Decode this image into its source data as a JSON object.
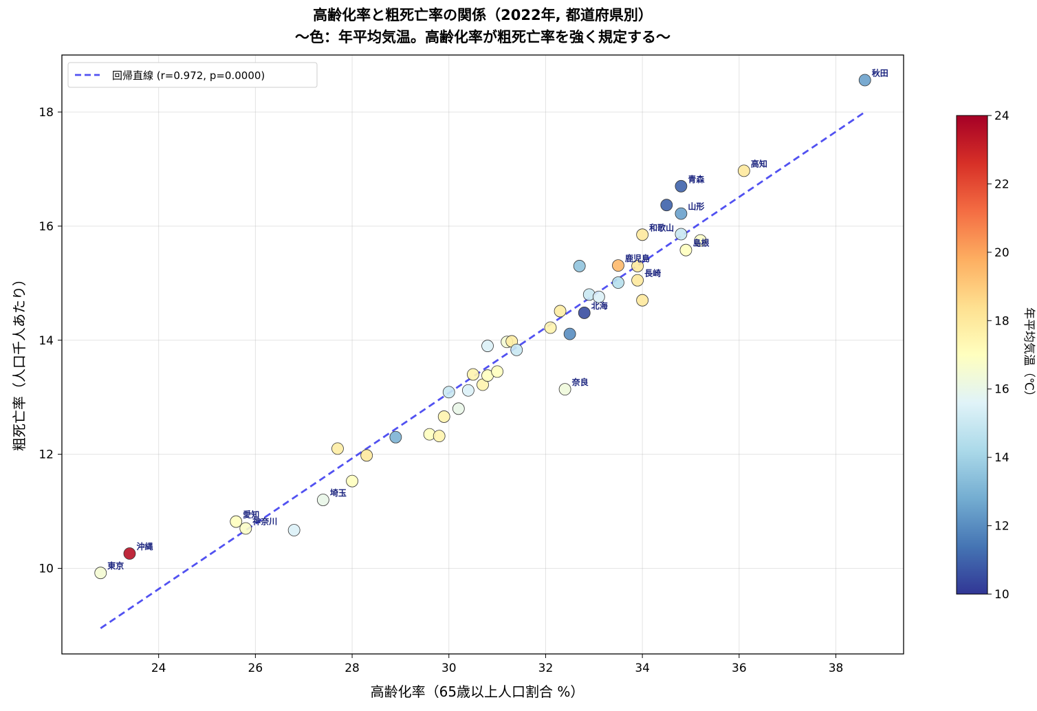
{
  "chart_data": {
    "type": "scatter",
    "title_line1": "高齢化率と粗死亡率の関係（2022年, 都道府県別）",
    "title_line2": "〜色：年平均気温。高齢化率が粗死亡率を強く規定する〜",
    "xlabel": "高齢化率（65歳以上人口割合 %）",
    "ylabel": "粗死亡率（人口千人あたり）",
    "xlim": [
      22.0,
      39.4
    ],
    "ylim": [
      8.5,
      19.0
    ],
    "xticks": [
      "24",
      "26",
      "28",
      "30",
      "32",
      "34",
      "36",
      "38"
    ],
    "yticks": [
      "10",
      "12",
      "14",
      "16",
      "18"
    ],
    "grid": true,
    "legend_position": "top-left",
    "legend_label": "回帰直線 (r=0.972, p=0.0000)",
    "regression_line": {
      "x": [
        22.8,
        38.6
      ],
      "y": [
        8.95,
        18.0
      ],
      "color": "#3333ee",
      "style": "dashed"
    },
    "colorbar": {
      "label": "年平均気温（℃）",
      "min": 10,
      "max": 24,
      "ticks": [
        "10",
        "12",
        "14",
        "16",
        "18",
        "20",
        "22",
        "24"
      ],
      "colormap": "RdYlBu_r"
    },
    "points": [
      {
        "label": "東京",
        "x": 22.8,
        "y": 9.92,
        "temp": 16.5
      },
      {
        "label": "沖縄",
        "x": 23.4,
        "y": 10.26,
        "temp": 23.5
      },
      {
        "label": "愛知",
        "x": 25.6,
        "y": 10.82,
        "temp": 17.0
      },
      {
        "label": "神奈川",
        "x": 25.8,
        "y": 10.7,
        "temp": 16.8
      },
      {
        "label": "",
        "x": 26.8,
        "y": 10.67,
        "temp": 15.5
      },
      {
        "label": "埼玉",
        "x": 27.4,
        "y": 11.2,
        "temp": 16.0
      },
      {
        "label": "",
        "x": 27.7,
        "y": 12.1,
        "temp": 17.8
      },
      {
        "label": "",
        "x": 28.0,
        "y": 11.53,
        "temp": 17.0
      },
      {
        "label": "",
        "x": 28.3,
        "y": 11.98,
        "temp": 18.0
      },
      {
        "label": "",
        "x": 28.9,
        "y": 12.3,
        "temp": 13.0
      },
      {
        "label": "",
        "x": 29.6,
        "y": 12.35,
        "temp": 17.0
      },
      {
        "label": "",
        "x": 29.8,
        "y": 12.32,
        "temp": 17.5
      },
      {
        "label": "",
        "x": 29.9,
        "y": 12.66,
        "temp": 17.5
      },
      {
        "label": "",
        "x": 30.0,
        "y": 13.09,
        "temp": 15.0
      },
      {
        "label": "",
        "x": 30.2,
        "y": 12.8,
        "temp": 16.0
      },
      {
        "label": "",
        "x": 30.4,
        "y": 13.12,
        "temp": 15.5
      },
      {
        "label": "",
        "x": 30.5,
        "y": 13.4,
        "temp": 17.5
      },
      {
        "label": "",
        "x": 30.7,
        "y": 13.22,
        "temp": 17.5
      },
      {
        "label": "",
        "x": 30.8,
        "y": 13.38,
        "temp": 17.0
      },
      {
        "label": "",
        "x": 30.8,
        "y": 13.9,
        "temp": 15.5
      },
      {
        "label": "",
        "x": 31.0,
        "y": 13.45,
        "temp": 17.0
      },
      {
        "label": "",
        "x": 31.2,
        "y": 13.97,
        "temp": 16.5
      },
      {
        "label": "",
        "x": 31.3,
        "y": 13.98,
        "temp": 17.8
      },
      {
        "label": "",
        "x": 31.4,
        "y": 13.83,
        "temp": 15.0
      },
      {
        "label": "",
        "x": 32.1,
        "y": 14.22,
        "temp": 17.5
      },
      {
        "label": "",
        "x": 32.3,
        "y": 14.51,
        "temp": 17.8
      },
      {
        "label": "奈良",
        "x": 32.4,
        "y": 13.14,
        "temp": 16.3
      },
      {
        "label": "",
        "x": 32.5,
        "y": 14.11,
        "temp": 12.0
      },
      {
        "label": "",
        "x": 32.7,
        "y": 15.3,
        "temp": 13.5
      },
      {
        "label": "北海",
        "x": 32.8,
        "y": 14.48,
        "temp": 10.5
      },
      {
        "label": "",
        "x": 32.9,
        "y": 14.8,
        "temp": 15.0
      },
      {
        "label": "",
        "x": 33.1,
        "y": 14.76,
        "temp": 15.5
      },
      {
        "label": "鹿児島",
        "x": 33.5,
        "y": 15.31,
        "temp": 19.5
      },
      {
        "label": "",
        "x": 33.5,
        "y": 15.01,
        "temp": 14.5
      },
      {
        "label": "",
        "x": 33.9,
        "y": 15.3,
        "temp": 18.0
      },
      {
        "label": "長崎",
        "x": 33.9,
        "y": 15.05,
        "temp": 18.0
      },
      {
        "label": "",
        "x": 34.0,
        "y": 14.7,
        "temp": 18.0
      },
      {
        "label": "和歌山",
        "x": 34.0,
        "y": 15.85,
        "temp": 18.0
      },
      {
        "label": "",
        "x": 34.5,
        "y": 16.37,
        "temp": 11.0
      },
      {
        "label": "",
        "x": 34.8,
        "y": 15.86,
        "temp": 15.0
      },
      {
        "label": "山形",
        "x": 34.8,
        "y": 16.22,
        "temp": 12.5
      },
      {
        "label": "青森",
        "x": 34.8,
        "y": 16.7,
        "temp": 11.0
      },
      {
        "label": "島根",
        "x": 34.9,
        "y": 15.58,
        "temp": 17.0
      },
      {
        "label": "",
        "x": 35.2,
        "y": 15.75,
        "temp": 16.8
      },
      {
        "label": "高知",
        "x": 36.1,
        "y": 16.97,
        "temp": 18.0
      },
      {
        "label": "秋田",
        "x": 38.6,
        "y": 18.56,
        "temp": 12.5
      }
    ]
  }
}
